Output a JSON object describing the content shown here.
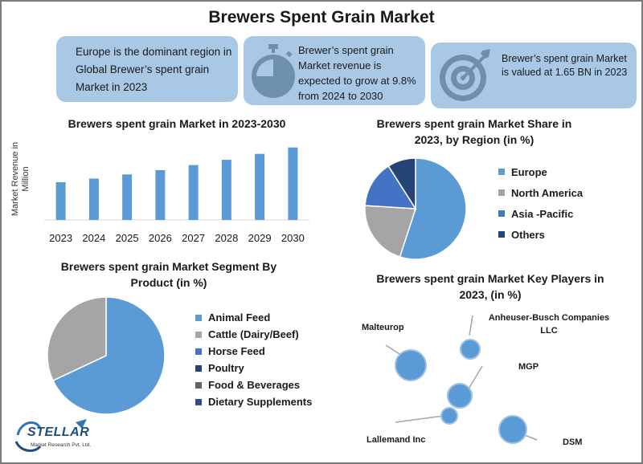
{
  "title": "Brewers Spent Grain Market",
  "highlights": [
    {
      "text": "Europe is the dominant region in Global Brewer’s spent grain Market in 2023"
    },
    {
      "text": "Brewer’s spent grain Market revenue is expected to grow at 9.8% from 2024 to 2030",
      "icon": "stopwatch-icon"
    },
    {
      "text": "Brewer’s spent grain Market is valued at 1.65 BN in 2023",
      "icon": "target-icon"
    }
  ],
  "logo": {
    "name": "STELLAR",
    "tagline": "Market Research Pvt. Ltd."
  },
  "colors": {
    "box": "#a8c8e6",
    "blue": "#5b9bd5",
    "gray": "#a5a5a5",
    "mid_blue": "#4472c4",
    "dark_blue": "#264478"
  },
  "chart_data": [
    {
      "type": "bar",
      "title": "Brewers spent grain Market in 2023-2030",
      "ylabel": "Market Revenue in Million",
      "categories": [
        "2023",
        "2024",
        "2025",
        "2026",
        "2027",
        "2028",
        "2029",
        "2030"
      ],
      "values": [
        1.65,
        1.81,
        1.99,
        2.18,
        2.4,
        2.63,
        2.89,
        3.17
      ],
      "ylim": [
        0,
        3.3
      ],
      "grid": false,
      "color": "#5b9bd5"
    },
    {
      "type": "pie",
      "title": "Brewers spent grain Market Share in 2023, by Region (in %)",
      "labels": [
        "Europe",
        "North America",
        "Asia -Pacific",
        "Others"
      ],
      "values": [
        55,
        21,
        15,
        9
      ],
      "colors": [
        "#5b9bd5",
        "#a5a5a5",
        "#4472c4",
        "#264478"
      ],
      "legend": "right"
    },
    {
      "type": "pie",
      "title": "Brewers spent grain Market Segment By Product (in %)",
      "labels": [
        "Animal Feed",
        "Cattle (Dairy/Beef)",
        "Horse Feed",
        "Poultry",
        "Food & Beverages",
        "Dietary Supplements"
      ],
      "values": [
        68,
        32,
        0,
        0,
        0,
        0
      ],
      "colors": [
        "#5b9bd5",
        "#a5a5a5",
        "#4472c4",
        "#264478",
        "#636363",
        "#2f4c8f"
      ],
      "legend": "right"
    },
    {
      "type": "scatter",
      "title": "Brewers spent grain Market Key Players in 2023, (in %)",
      "players": [
        {
          "name": "Malteurop",
          "size": 18
        },
        {
          "name": "Anheuser-Busch Companies LLC",
          "size": 12
        },
        {
          "name": "MGP",
          "size": 15
        },
        {
          "name": "Lallemand Inc",
          "size": 10
        },
        {
          "name": "DSM",
          "size": 17
        }
      ]
    }
  ]
}
